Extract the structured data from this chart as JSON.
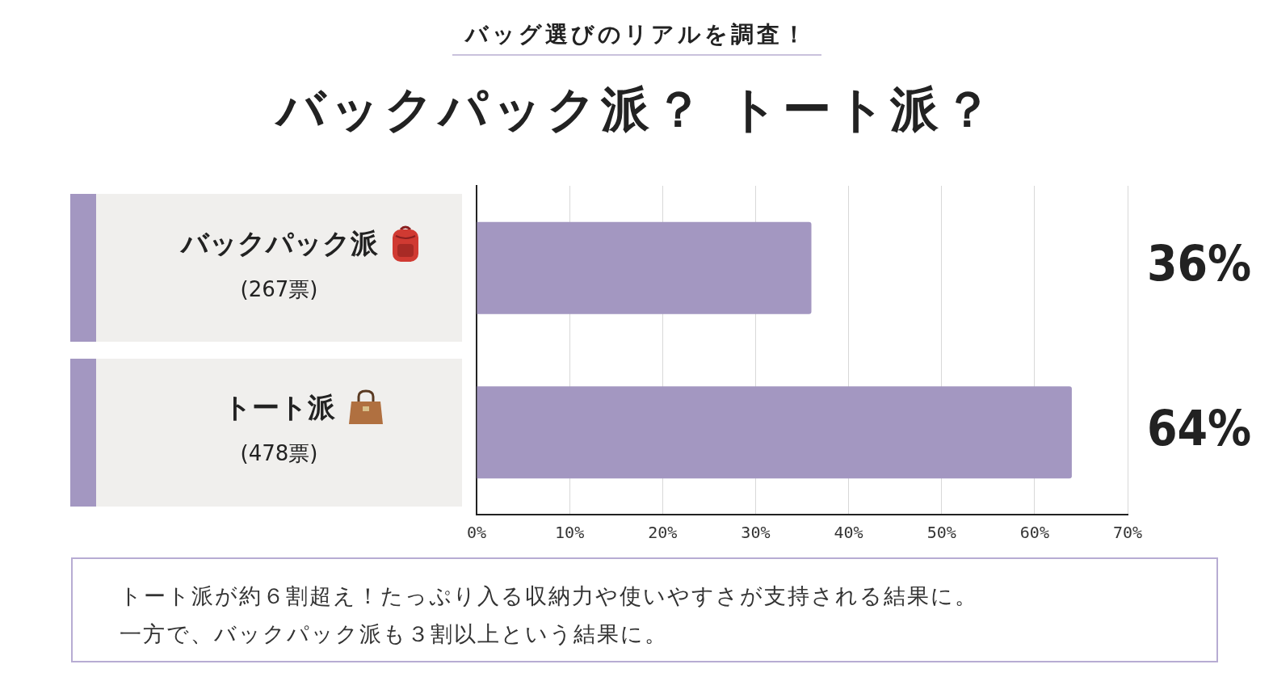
{
  "chart_data": {
    "type": "bar",
    "orientation": "horizontal",
    "subtitle": "バッグ選びのリアルを調査！",
    "title": "バックパック派？ トート派？",
    "categories": [
      "バックパック派\n(267票)",
      "トート派\n(478票)"
    ],
    "values": [
      36,
      64
    ],
    "color": "#a397c1",
    "value_labels": [
      "36%",
      "64%"
    ],
    "xlim": [
      0,
      70
    ],
    "xticks": [
      {
        "value": 0,
        "label": "0%"
      },
      {
        "value": 10,
        "label": "10%"
      },
      {
        "value": 20,
        "label": "20%"
      },
      {
        "value": 30,
        "label": "30%"
      },
      {
        "value": 40,
        "label": "40%"
      },
      {
        "value": 50,
        "label": "50%"
      },
      {
        "value": 60,
        "label": "60%"
      },
      {
        "value": 70,
        "label": "70%"
      }
    ],
    "grid": "x",
    "annotations": [
      "トート派が約６割超え！たっぷり入る収納力や使いやすさが支持される結果に。",
      "一方で、バックパック派も３割以上という結果に。"
    ]
  }
}
